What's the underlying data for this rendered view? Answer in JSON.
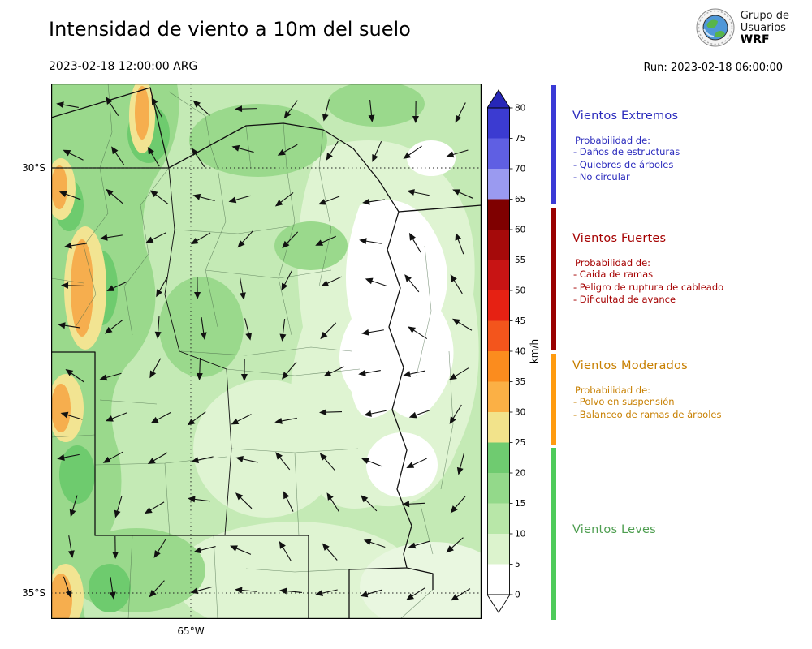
{
  "header": {
    "title": "Intensidad de viento a 10m del suelo",
    "valid": "2023-02-18 12:00:00 ARG",
    "run_label": "Run: 2023-02-18 06:00:00",
    "logo": {
      "line1": "Grupo de",
      "line2": "Usuarios",
      "line3": "WRF"
    }
  },
  "map": {
    "lat_labels": [
      "30°S",
      "35°S"
    ],
    "lon_label": "65°W"
  },
  "colorbar": {
    "unit": "km/h",
    "ticks": [
      0,
      5,
      10,
      15,
      20,
      25,
      30,
      35,
      40,
      45,
      50,
      55,
      60,
      65,
      70,
      75,
      80
    ],
    "over_color": "#2727b8",
    "under_color": "#ffffff",
    "segments": [
      {
        "from": 75,
        "to": 80,
        "color": "#3b3bd1"
      },
      {
        "from": 70,
        "to": 75,
        "color": "#5f5fe3"
      },
      {
        "from": 65,
        "to": 70,
        "color": "#9a9af0"
      },
      {
        "from": 60,
        "to": 65,
        "color": "#7f0000"
      },
      {
        "from": 55,
        "to": 60,
        "color": "#a50a0a"
      },
      {
        "from": 50,
        "to": 55,
        "color": "#c81414"
      },
      {
        "from": 45,
        "to": 50,
        "color": "#e62113"
      },
      {
        "from": 40,
        "to": 45,
        "color": "#f3551c"
      },
      {
        "from": 35,
        "to": 40,
        "color": "#fb8c1e"
      },
      {
        "from": 30,
        "to": 35,
        "color": "#fbb045"
      },
      {
        "from": 25,
        "to": 30,
        "color": "#f2e38b"
      },
      {
        "from": 20,
        "to": 25,
        "color": "#6fcb70"
      },
      {
        "from": 15,
        "to": 20,
        "color": "#93d98a"
      },
      {
        "from": 10,
        "to": 15,
        "color": "#b8e7a8"
      },
      {
        "from": 5,
        "to": 10,
        "color": "#dcf3cd"
      },
      {
        "from": 0,
        "to": 5,
        "color": "#ffffff"
      }
    ]
  },
  "legend": {
    "sections": [
      {
        "title": "Vientos Extremos",
        "color": "#2b2bbd",
        "strip_color": "#3a3ad6",
        "prob_label": "Probabilidad de:",
        "items": [
          "- Daños de estructuras",
          "- Quiebres de árboles",
          "- No circular"
        ]
      },
      {
        "title": "Vientos Fuertes",
        "color": "#a50000",
        "strip_color": "#990000",
        "prob_label": "Probabilidad de:",
        "items": [
          "- Caida de ramas",
          "- Peligro de ruptura de cableado",
          "- Dificultad de avance"
        ]
      },
      {
        "title": "Vientos Moderados",
        "color": "#c77f00",
        "strip_color": "#ff9b0f",
        "prob_label": "Probabilidad de:",
        "items": [
          "- Polvo en suspensión",
          "- Balanceo de ramas de árboles"
        ]
      },
      {
        "title": "Vientos Leves",
        "color": "#4e9e50",
        "strip_color": "#4ecb5a",
        "prob_label": "",
        "items": []
      }
    ]
  }
}
